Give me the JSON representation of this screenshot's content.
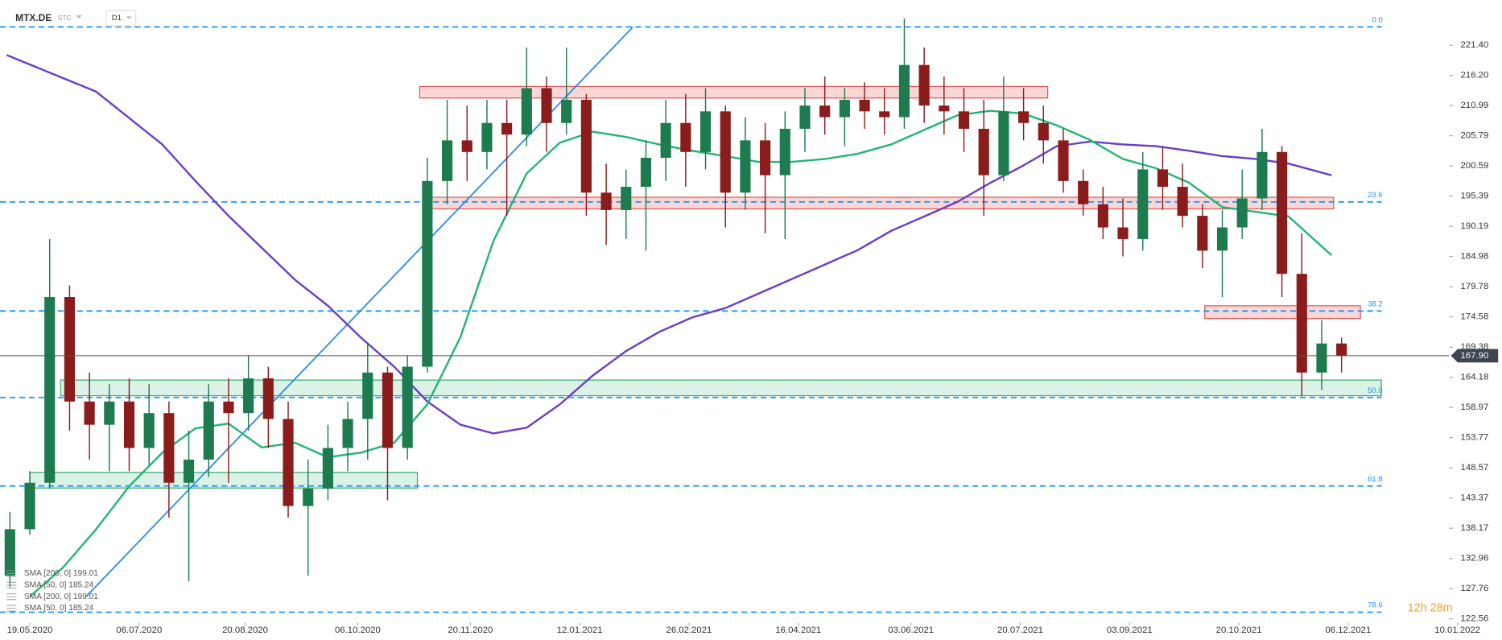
{
  "chart_data": {
    "type": "candlestick",
    "symbol": "MTX.DE",
    "instrument_type": "STC",
    "timeframe": "D1",
    "countdown": "12h 28m",
    "up_color": "#1e7b4f",
    "down_color": "#8b1c1c",
    "x": [
      -6,
      0,
      6,
      12,
      18,
      24,
      30,
      36,
      42,
      48,
      54,
      60,
      66,
      72,
      78,
      84,
      90,
      96,
      102,
      108,
      114,
      120,
      126,
      132,
      138,
      144,
      150,
      156,
      162,
      168,
      174,
      180,
      186,
      192,
      198,
      204,
      210,
      216,
      222,
      228,
      234,
      240,
      246,
      252,
      258,
      264,
      270,
      276,
      282,
      288,
      294,
      300,
      306,
      312,
      318,
      324,
      330,
      336,
      342,
      348,
      354,
      360,
      366,
      372,
      378,
      384,
      390,
      396
    ],
    "open": [
      130,
      138,
      146,
      178,
      160,
      156,
      160,
      152,
      158,
      146,
      150,
      160,
      158,
      164,
      157,
      142,
      145,
      152,
      157,
      165,
      152,
      166,
      198,
      205,
      203,
      208,
      206,
      214,
      208,
      212,
      196,
      193,
      197,
      202,
      208,
      203,
      210,
      196,
      205,
      199,
      207,
      211,
      209,
      212,
      210,
      209,
      218,
      211,
      210,
      207,
      199,
      210,
      208,
      205,
      198,
      194,
      190,
      188,
      200,
      197,
      192,
      186,
      190,
      195,
      203,
      182,
      165,
      170
    ],
    "high": [
      141,
      148,
      188,
      180,
      165,
      163,
      164,
      163,
      160,
      155,
      163,
      164,
      168,
      166,
      160,
      150,
      156,
      160,
      170,
      166,
      168,
      202,
      212,
      211,
      212,
      212,
      221,
      216,
      221,
      213,
      201,
      200,
      205,
      212,
      213,
      214,
      211,
      209,
      208,
      210,
      214,
      216,
      214,
      215,
      214,
      226,
      221,
      216,
      214,
      212,
      216,
      214,
      211,
      207,
      200,
      197,
      195,
      203,
      204,
      201,
      194,
      193,
      200,
      207,
      204,
      189,
      174,
      171
    ],
    "low": [
      128,
      137,
      145,
      155,
      150,
      148,
      148,
      149,
      140,
      129,
      147,
      146,
      155,
      152,
      140,
      130,
      143,
      148,
      150,
      143,
      150,
      165,
      194,
      198,
      200,
      192,
      204,
      203,
      206,
      192,
      187,
      188,
      186,
      198,
      197,
      200,
      190,
      193,
      189,
      188,
      203,
      206,
      204,
      207,
      206,
      207,
      208,
      206,
      203,
      192,
      198,
      205,
      201,
      196,
      192,
      188,
      185,
      186,
      193,
      190,
      183,
      178,
      188,
      193,
      178,
      161,
      162,
      165
    ],
    "close": [
      138,
      146,
      178,
      160,
      156,
      160,
      152,
      158,
      146,
      150,
      160,
      158,
      164,
      157,
      142,
      145,
      152,
      157,
      165,
      152,
      166,
      198,
      205,
      203,
      208,
      206,
      214,
      208,
      212,
      196,
      193,
      197,
      202,
      208,
      203,
      210,
      196,
      205,
      199,
      207,
      211,
      209,
      212,
      210,
      209,
      218,
      211,
      210,
      207,
      199,
      210,
      208,
      205,
      198,
      194,
      190,
      188,
      200,
      197,
      192,
      186,
      190,
      195,
      203,
      182,
      165,
      170,
      167.9
    ],
    "series": [
      {
        "color": "#6a3cc7",
        "x": [
          -7,
          20,
          40,
          50,
          60,
          70,
          80,
          90,
          100,
          110,
          120,
          130,
          140,
          150,
          160,
          170,
          180,
          190,
          200,
          210,
          220,
          230,
          240,
          250,
          260,
          270,
          280,
          290,
          300,
          310,
          320,
          330,
          340,
          350,
          360,
          370,
          380,
          393
        ],
        "values": [
          219.7,
          213.4,
          204.3,
          198,
          192,
          186.5,
          181,
          176.5,
          171,
          166,
          160,
          156,
          154.5,
          155.5,
          159.5,
          164.5,
          168.7,
          172,
          174.5,
          176.1,
          178.6,
          181.1,
          183.6,
          186.1,
          189.4,
          191.9,
          194.4,
          197.7,
          200.7,
          204,
          204.8,
          204.3,
          204,
          203.2,
          202.3,
          201.8,
          201,
          199
        ]
      },
      {
        "color": "#22b573",
        "x": [
          0,
          10,
          20,
          30,
          40,
          50,
          60,
          70,
          80,
          90,
          100,
          110,
          120,
          130,
          140,
          150,
          160,
          170,
          180,
          190,
          200,
          210,
          220,
          230,
          240,
          250,
          260,
          270,
          280,
          290,
          300,
          310,
          320,
          330,
          340,
          350,
          360,
          370,
          380,
          393
        ],
        "values": [
          126.4,
          131.4,
          138,
          145.4,
          151.2,
          155.4,
          156.2,
          152.1,
          152.9,
          150.4,
          151.2,
          152.9,
          159.5,
          171.1,
          187.7,
          199.3,
          204.6,
          206.5,
          205.6,
          204.3,
          203.2,
          202.3,
          201.3,
          201.3,
          201.8,
          202.7,
          204.3,
          206.8,
          209.3,
          210.1,
          209.6,
          207.6,
          205.1,
          201.8,
          200.2,
          197.7,
          193.5,
          192.7,
          191.9,
          185.2
        ]
      }
    ],
    "legend": [
      "SMA [200, 0] 199.01",
      "SMA [50, 0] 185.24",
      "SMA [200, 0] 199.01",
      "SMA [50, 0] 185.24"
    ],
    "trendline": {
      "color": "#2a8be8",
      "x": [
        17,
        182
      ],
      "values": [
        126.4,
        224.5
      ]
    },
    "fib_color": "#2196f3",
    "fib_levels": [
      {
        "value": 224.55,
        "label": "0.0"
      },
      {
        "value": 194.4,
        "label": "23.6"
      },
      {
        "value": 175.6,
        "label": "38.2"
      },
      {
        "value": 160.7,
        "label": "50.0"
      },
      {
        "value": 145.45,
        "label": "61.8"
      },
      {
        "value": 123.7,
        "label": "78.6"
      }
    ],
    "zones": [
      {
        "top": 214.3,
        "bottom": 212.3,
        "start": 117.7,
        "end": 307.3,
        "color": "#f4b6b6"
      },
      {
        "top": 195.2,
        "bottom": 193.2,
        "start": 119,
        "end": 393.6,
        "color": "#f4b6b6"
      },
      {
        "top": 176.5,
        "bottom": 174.3,
        "start": 354.7,
        "end": 401.7,
        "color": "#f4b6b6"
      },
      {
        "top": 163.7,
        "bottom": 161.0,
        "start": 9.3,
        "end": 408,
        "color": "#bde8d2"
      },
      {
        "top": 147.8,
        "bottom": 145.1,
        "start": 0,
        "end": 117,
        "color": "#bde8d2"
      }
    ],
    "current_price": {
      "value": 167.9,
      "label": "167.90"
    },
    "xlim": [
      -9,
      427
    ],
    "xticks": [
      {
        "value": 0,
        "label": "19.05.2020"
      },
      {
        "value": 33,
        "label": "06.07.2020"
      },
      {
        "value": 65,
        "label": "20.08.2020"
      },
      {
        "value": 99,
        "label": "06.10.2020"
      },
      {
        "value": 133,
        "label": "20.11.2020"
      },
      {
        "value": 166,
        "label": "12.01.2021"
      },
      {
        "value": 199,
        "label": "26.02.2021"
      },
      {
        "value": 232,
        "label": "16.04.2021"
      },
      {
        "value": 266,
        "label": "03.06.2021"
      },
      {
        "value": 299,
        "label": "20.07.2021"
      },
      {
        "value": 332,
        "label": "03.09.2021"
      },
      {
        "value": 365,
        "label": "20.10.2021"
      },
      {
        "value": 398,
        "label": "06.12.2021"
      },
      {
        "value": 431,
        "label": "10.01.2022"
      }
    ],
    "ylim": [
      121.73,
      229.19
    ],
    "yticks": [
      {
        "value": 221.4,
        "label": "221.40"
      },
      {
        "value": 216.2,
        "label": "216.20"
      },
      210.99,
      205.79,
      200.59,
      195.39,
      190.19,
      184.98,
      179.78,
      174.58,
      169.38,
      164.18,
      158.97,
      153.77,
      148.57,
      143.37,
      138.17,
      132.96,
      127.76,
      122.56
    ]
  }
}
